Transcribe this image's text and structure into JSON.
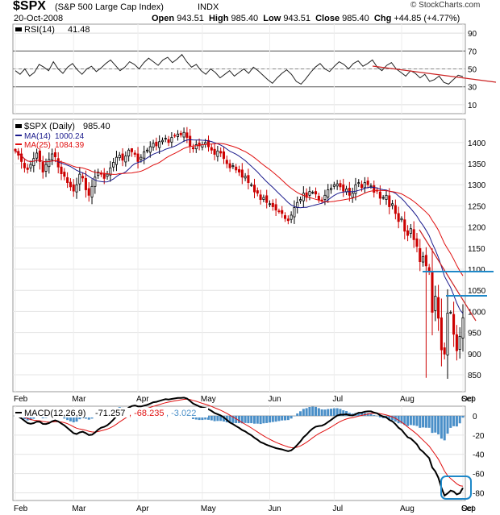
{
  "header": {
    "symbol": "$SPX",
    "name": "(S&P 500 Large Cap Index)",
    "exchange": "INDX",
    "date": "20-Oct-2008",
    "copyright": "© StockCharts.com",
    "open_label": "Open",
    "open": "943.51",
    "high_label": "High",
    "high": "985.40",
    "low_label": "Low",
    "low": "943.51",
    "close_label": "Close",
    "close": "985.40",
    "chg_label": "Chg",
    "chg": "+44.85 (+4.77%)"
  },
  "colors": {
    "up": "#000000",
    "down": "#cc0000",
    "ma14": "#1a1a8c",
    "ma25": "#e01010",
    "hist": "#4a8fc8",
    "signal": "#e01010",
    "annot_line": "#1e88c8",
    "trend": "#cc2222"
  },
  "chart_data": [
    {
      "type": "line",
      "title": "RSI(14)",
      "legend_label": "RSI(14)",
      "last_value": "41.48",
      "ylim": [
        0,
        100
      ],
      "yticks": [
        10,
        30,
        50,
        70,
        90
      ],
      "overbought": 70,
      "oversold": 30,
      "values": [
        48,
        44,
        50,
        42,
        46,
        55,
        52,
        48,
        58,
        50,
        45,
        52,
        56,
        49,
        44,
        50,
        53,
        47,
        51,
        56,
        60,
        54,
        48,
        52,
        58,
        55,
        50,
        57,
        62,
        58,
        54,
        60,
        63,
        57,
        61,
        66,
        58,
        52,
        55,
        48,
        44,
        50,
        46,
        40,
        44,
        48,
        42,
        46,
        50,
        45,
        52,
        48,
        43,
        38,
        34,
        40,
        45,
        49,
        44,
        36,
        33,
        39,
        46,
        52,
        56,
        50,
        47,
        53,
        58,
        55,
        50,
        56,
        59,
        53,
        56,
        60,
        52,
        48,
        54,
        57,
        50,
        46,
        42,
        48,
        45,
        40,
        44,
        36,
        38,
        42,
        35,
        33,
        38,
        43,
        41.48
      ]
    },
    {
      "type": "candlestick",
      "title": "$SPX (Daily)",
      "legend_label": "$SPX (Daily)",
      "last_value": "985.40",
      "ma14_label": "MA(14)",
      "ma14_value": "1000.24",
      "ma25_label": "MA(25)",
      "ma25_value": "1084.39",
      "ylim": [
        810,
        1455
      ],
      "yticks": [
        850,
        900,
        950,
        1000,
        1050,
        1100,
        1150,
        1200,
        1250,
        1300,
        1350,
        1400
      ],
      "x_months": [
        "Feb",
        "Mar",
        "Apr",
        "May",
        "Jun",
        "Jul",
        "Aug",
        "Sep",
        "Oct"
      ],
      "closes": [
        1380,
        1370,
        1355,
        1340,
        1336,
        1348,
        1362,
        1375,
        1355,
        1330,
        1348,
        1360,
        1373,
        1366,
        1342,
        1326,
        1320,
        1305,
        1295,
        1285,
        1300,
        1325,
        1316,
        1288,
        1275,
        1296,
        1318,
        1330,
        1325,
        1315,
        1325,
        1340,
        1353,
        1365,
        1370,
        1358,
        1368,
        1382,
        1378,
        1372,
        1355,
        1365,
        1378,
        1382,
        1390,
        1398,
        1392,
        1402,
        1405,
        1410,
        1400,
        1412,
        1416,
        1420,
        1418,
        1424,
        1412,
        1392,
        1385,
        1395,
        1392,
        1395,
        1400,
        1390,
        1382,
        1372,
        1380,
        1375,
        1362,
        1350,
        1340,
        1345,
        1335,
        1330,
        1318,
        1320,
        1305,
        1300,
        1283,
        1280,
        1265,
        1270,
        1258,
        1255,
        1248,
        1240,
        1237,
        1232,
        1220,
        1215,
        1228,
        1246,
        1258,
        1265,
        1280,
        1270,
        1284,
        1282,
        1278,
        1265,
        1262,
        1275,
        1288,
        1292,
        1300,
        1302,
        1295,
        1285,
        1290,
        1275,
        1280,
        1300,
        1305,
        1293,
        1305,
        1300,
        1297,
        1282,
        1285,
        1268,
        1270,
        1275,
        1248,
        1255,
        1232,
        1213,
        1220,
        1190,
        1180,
        1196,
        1170,
        1154,
        1118,
        1130,
        1108,
        1095,
        998,
        1036,
        984,
        909,
        899,
        996,
        998,
        946,
        907,
        941,
        985
      ],
      "extremes": {
        "high": 1440,
        "low": 843
      }
    },
    {
      "type": "line",
      "title": "MACD(12,26,9)",
      "legend_label": "MACD(12,26,9)",
      "macd_value": "-71.257",
      "signal_value": "-68.235",
      "hist_value": "-3.022",
      "ylim": [
        -88,
        10
      ],
      "yticks": [
        0,
        -20,
        -40,
        -60,
        -80
      ],
      "x_months": [
        "Feb",
        "Mar",
        "Apr",
        "May",
        "Jun",
        "Jul",
        "Aug",
        "Sep",
        "Oct"
      ]
    }
  ]
}
